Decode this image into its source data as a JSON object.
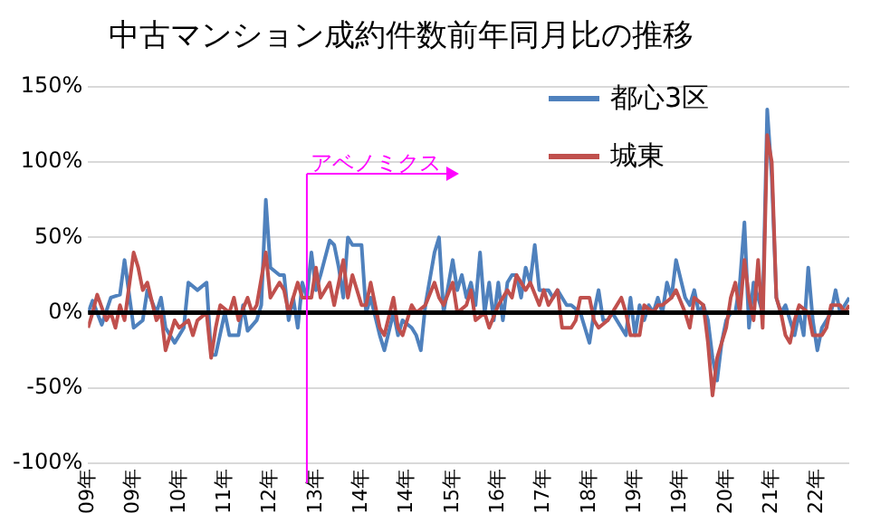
{
  "chart_data": {
    "type": "line",
    "title": "中古マンション成約件数前年同月比の推移",
    "xlim": [
      "2009-01",
      "2022-12"
    ],
    "xticks": [
      {
        "value": "2009-01",
        "label": "09年"
      },
      {
        "value": "2009-11",
        "label": "09年"
      },
      {
        "value": "2010-09",
        "label": "10年"
      },
      {
        "value": "2011-07",
        "label": "11年"
      },
      {
        "value": "2012-05",
        "label": "12年"
      },
      {
        "value": "2013-03",
        "label": "13年"
      },
      {
        "value": "2014-01",
        "label": "14年"
      },
      {
        "value": "2014-11",
        "label": "14年"
      },
      {
        "value": "2015-09",
        "label": "15年"
      },
      {
        "value": "2016-07",
        "label": "16年"
      },
      {
        "value": "2017-05",
        "label": "17年"
      },
      {
        "value": "2018-03",
        "label": "18年"
      },
      {
        "value": "2019-01",
        "label": "19年"
      },
      {
        "value": "2019-11",
        "label": "19年"
      },
      {
        "value": "2020-09",
        "label": "20年"
      },
      {
        "value": "2021-07",
        "label": "21年"
      },
      {
        "value": "2022-05",
        "label": "22年"
      }
    ],
    "ylim": [
      -100,
      150
    ],
    "yticks": [
      {
        "value": -100,
        "label": "-100%"
      },
      {
        "value": -50,
        "label": "-50%"
      },
      {
        "value": 0,
        "label": "0%"
      },
      {
        "value": 50,
        "label": "50%"
      },
      {
        "value": 100,
        "label": "100%"
      },
      {
        "value": 150,
        "label": "150%"
      }
    ],
    "grid": "y",
    "legend": "top right",
    "marker": "none",
    "line_style": "solid",
    "ref_lines": [
      {
        "axis": "y",
        "value": 0,
        "color": "#000000"
      },
      {
        "axis": "x",
        "value": "2013-01",
        "label": "アベノミクス",
        "color": "#ff00ff"
      }
    ],
    "series": [
      {
        "name": "都心3区",
        "color": "#4f81bd",
        "x": [
          "2009-01",
          "2009-02",
          "2009-04",
          "2009-06",
          "2009-08",
          "2009-09",
          "2009-11",
          "2010-01",
          "2010-02",
          "2010-04",
          "2010-05",
          "2010-06",
          "2010-08",
          "2010-10",
          "2010-11",
          "2011-01",
          "2011-03",
          "2011-04",
          "2011-05",
          "2011-07",
          "2011-08",
          "2011-10",
          "2011-11",
          "2011-12",
          "2012-02",
          "2012-03",
          "2012-04",
          "2012-05",
          "2012-07",
          "2012-08",
          "2012-09",
          "2012-10",
          "2012-11",
          "2012-12",
          "2013-01",
          "2013-02",
          "2013-03",
          "2013-04",
          "2013-06",
          "2013-07",
          "2013-08",
          "2013-09",
          "2013-10",
          "2013-11",
          "2014-01",
          "2014-02",
          "2014-03",
          "2014-05",
          "2014-06",
          "2014-08",
          "2014-09",
          "2014-10",
          "2014-12",
          "2015-01",
          "2015-02",
          "2015-03",
          "2015-05",
          "2015-06",
          "2015-07",
          "2015-09",
          "2015-10",
          "2015-11",
          "2015-12",
          "2016-01",
          "2016-02",
          "2016-03",
          "2016-04",
          "2016-05",
          "2016-06",
          "2016-07",
          "2016-08",
          "2016-09",
          "2016-10",
          "2016-11",
          "2016-12",
          "2017-01",
          "2017-02",
          "2017-03",
          "2017-04",
          "2017-05",
          "2017-06",
          "2017-07",
          "2017-08",
          "2017-09",
          "2017-10",
          "2017-11",
          "2018-01",
          "2018-02",
          "2018-03",
          "2018-04",
          "2018-05",
          "2018-06",
          "2018-07",
          "2018-08",
          "2018-10",
          "2018-11",
          "2018-12",
          "2019-01",
          "2019-02",
          "2019-03",
          "2019-04",
          "2019-05",
          "2019-06",
          "2019-07",
          "2019-08",
          "2019-09",
          "2019-10",
          "2019-12",
          "2020-01",
          "2020-02",
          "2020-03",
          "2020-04",
          "2020-05",
          "2020-06",
          "2020-07",
          "2020-08",
          "2020-09",
          "2020-10",
          "2020-11",
          "2020-12",
          "2021-01",
          "2021-02",
          "2021-03",
          "2021-04",
          "2021-05",
          "2021-06",
          "2021-07",
          "2021-08",
          "2021-09",
          "2021-10",
          "2021-12",
          "2022-01",
          "2022-02",
          "2022-03",
          "2022-04",
          "2022-05",
          "2022-06",
          "2022-07",
          "2022-08",
          "2022-09",
          "2022-10",
          "2022-12"
        ],
        "values": [
          0,
          8,
          -8,
          10,
          12,
          35,
          -10,
          -5,
          15,
          0,
          10,
          -10,
          -20,
          -10,
          20,
          15,
          20,
          -28,
          -28,
          0,
          -15,
          -15,
          5,
          -12,
          -5,
          5,
          75,
          30,
          25,
          25,
          -5,
          10,
          -10,
          20,
          10,
          40,
          15,
          25,
          48,
          45,
          30,
          10,
          50,
          45,
          45,
          0,
          10,
          -15,
          -25,
          0,
          -15,
          -5,
          -10,
          -15,
          -25,
          5,
          40,
          50,
          0,
          35,
          15,
          25,
          10,
          20,
          5,
          40,
          0,
          20,
          -5,
          20,
          -5,
          20,
          25,
          25,
          10,
          30,
          20,
          45,
          15,
          15,
          15,
          10,
          15,
          10,
          5,
          5,
          0,
          -10,
          -20,
          0,
          15,
          -5,
          -5,
          0,
          -10,
          -15,
          10,
          -15,
          5,
          -5,
          5,
          0,
          10,
          0,
          20,
          10,
          35,
          10,
          5,
          15,
          0,
          5,
          -5,
          -30,
          -45,
          -20,
          -5,
          0,
          0,
          20,
          60,
          -10,
          20,
          10,
          0,
          135,
          90,
          10,
          0,
          5,
          -15,
          0,
          -15,
          30,
          -5,
          -25,
          -10,
          -5,
          0,
          15,
          0,
          10
        ]
      },
      {
        "name": "城東",
        "color": "#c0504d",
        "x": [
          "2009-01",
          "2009-02",
          "2009-03",
          "2009-05",
          "2009-06",
          "2009-07",
          "2009-08",
          "2009-09",
          "2009-11",
          "2009-12",
          "2010-01",
          "2010-02",
          "2010-04",
          "2010-05",
          "2010-06",
          "2010-08",
          "2010-09",
          "2010-11",
          "2010-12",
          "2011-01",
          "2011-03",
          "2011-04",
          "2011-05",
          "2011-06",
          "2011-08",
          "2011-09",
          "2011-10",
          "2011-12",
          "2012-01",
          "2012-02",
          "2012-04",
          "2012-05",
          "2012-07",
          "2012-08",
          "2012-09",
          "2012-11",
          "2012-12",
          "2013-02",
          "2013-03",
          "2013-04",
          "2013-06",
          "2013-07",
          "2013-09",
          "2013-10",
          "2013-11",
          "2014-01",
          "2014-02",
          "2014-03",
          "2014-05",
          "2014-06",
          "2014-08",
          "2014-09",
          "2014-10",
          "2014-12",
          "2015-01",
          "2015-03",
          "2015-05",
          "2015-06",
          "2015-07",
          "2015-09",
          "2015-10",
          "2015-12",
          "2016-01",
          "2016-02",
          "2016-04",
          "2016-05",
          "2016-07",
          "2016-08",
          "2016-09",
          "2016-10",
          "2016-11",
          "2017-01",
          "2017-02",
          "2017-04",
          "2017-05",
          "2017-06",
          "2017-08",
          "2017-09",
          "2017-11",
          "2017-12",
          "2018-01",
          "2018-03",
          "2018-04",
          "2018-05",
          "2018-07",
          "2018-08",
          "2018-10",
          "2018-11",
          "2018-12",
          "2019-02",
          "2019-03",
          "2019-05",
          "2019-06",
          "2019-07",
          "2019-09",
          "2019-10",
          "2019-12",
          "2020-01",
          "2020-02",
          "2020-04",
          "2020-05",
          "2020-06",
          "2020-07",
          "2020-09",
          "2020-10",
          "2020-11",
          "2020-12",
          "2021-01",
          "2021-02",
          "2021-03",
          "2021-04",
          "2021-05",
          "2021-06",
          "2021-07",
          "2021-08",
          "2021-09",
          "2021-10",
          "2021-11",
          "2021-12",
          "2022-01",
          "2022-03",
          "2022-04",
          "2022-05",
          "2022-06",
          "2022-07",
          "2022-08",
          "2022-10",
          "2022-11",
          "2022-12"
        ],
        "values": [
          -10,
          0,
          12,
          -5,
          0,
          -10,
          5,
          -5,
          40,
          30,
          15,
          20,
          -5,
          0,
          -25,
          -5,
          -10,
          -5,
          -15,
          -5,
          0,
          -30,
          -10,
          5,
          0,
          10,
          -5,
          10,
          0,
          5,
          40,
          10,
          20,
          15,
          0,
          20,
          10,
          10,
          30,
          10,
          20,
          5,
          35,
          10,
          25,
          5,
          5,
          20,
          -10,
          -15,
          10,
          -10,
          -15,
          5,
          0,
          5,
          20,
          10,
          5,
          20,
          0,
          5,
          15,
          -5,
          0,
          -10,
          5,
          10,
          15,
          10,
          25,
          15,
          20,
          5,
          15,
          5,
          15,
          -10,
          -10,
          -5,
          10,
          10,
          -5,
          -10,
          -5,
          0,
          10,
          0,
          -15,
          -15,
          5,
          0,
          5,
          5,
          10,
          15,
          0,
          -10,
          10,
          5,
          -20,
          -55,
          -30,
          -10,
          10,
          20,
          0,
          35,
          10,
          -5,
          35,
          -10,
          118,
          100,
          10,
          0,
          -15,
          -20,
          -5,
          5,
          0,
          -15,
          -15,
          -15,
          -10,
          5,
          5,
          0,
          5
        ]
      }
    ]
  }
}
